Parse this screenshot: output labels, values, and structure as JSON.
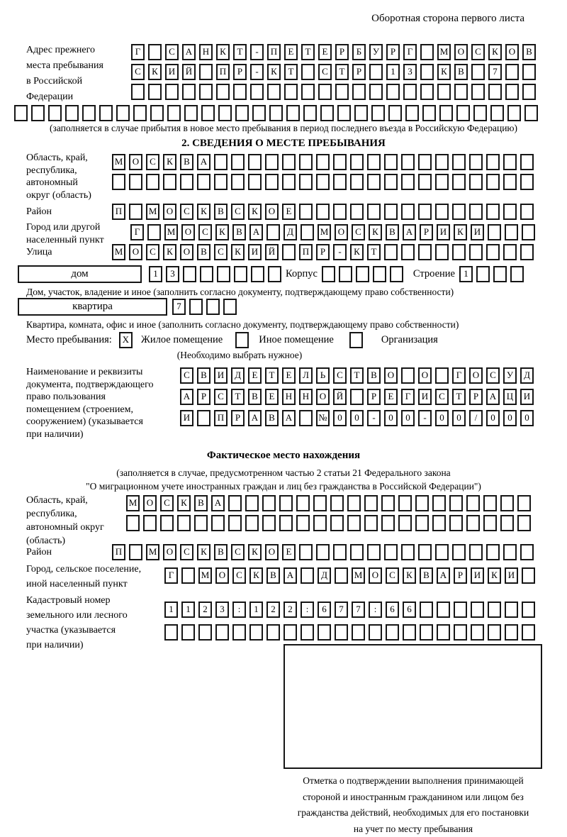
{
  "page": {
    "back_note": "Оборотная сторона первого листа"
  },
  "prev_address": {
    "label": "Адрес прежнего\nместа пребывания\nв Российской\nФедерации",
    "row1": {
      "cells": 24,
      "value": "Г САНКТ-ПЕТЕРБУРГ МОСКОВ"
    },
    "row2": {
      "cells": 24,
      "value": "СКИЙ ПР-КТ СТР 13 КВ 7"
    },
    "row3": {
      "cells": 24,
      "value": ""
    },
    "row4": {
      "cells": 31,
      "value": ""
    },
    "note": "(заполняется в случае прибытия в новое место пребывания в период последнего въезда в Российскую Федерацию)"
  },
  "section2": {
    "title": "2. СВЕДЕНИЯ О МЕСТЕ ПРЕБЫВАНИЯ",
    "oblast": {
      "label": "Область, край,\nреспублика,\nавтономный\nокруг (область)",
      "row1": {
        "cells": 25,
        "value": "МОСКВА"
      },
      "row2": {
        "cells": 25,
        "value": ""
      }
    },
    "raion": {
      "label": "Район",
      "row": {
        "cells": 25,
        "value": "П МОСКВСКОЕ"
      }
    },
    "gorod": {
      "label": "Город или другой\nнаселенный пункт",
      "row": {
        "cells": 24,
        "value": "Г МОСКВА Д МОСКВАРИКИ"
      }
    },
    "ulitsa": {
      "label": "Улица",
      "row": {
        "cells": 25,
        "value": "МОСКОВСКИЙ ПР-КТ"
      }
    },
    "dom": {
      "field_label": "дом",
      "row": {
        "cells": 8,
        "value": "13"
      },
      "korpus_label": "Корпус",
      "korpus_row": {
        "cells": 5,
        "value": ""
      },
      "stroenie_label": "Строение",
      "stroenie_row": {
        "cells": 4,
        "value": "1"
      },
      "note": "Дом, участок, владение и иное (заполнить согласно документу, подтверждающему право собственности)"
    },
    "kvartira": {
      "field_label": "квартира",
      "row": {
        "cells": 4,
        "value": "7"
      },
      "note": "Квартира, комната, офис и иное (заполнить согласно документу, подтверждающему право собственности)"
    },
    "mesto": {
      "label": "Место пребывания:",
      "options": [
        {
          "label": "Жилое помещение",
          "mark": "X"
        },
        {
          "label": "Иное помещение",
          "mark": ""
        },
        {
          "label": "Организация",
          "mark": ""
        }
      ],
      "note": "(Необходимо выбрать нужное)"
    },
    "doc": {
      "label": "Наименование и реквизиты\nдокумента, подтверждающего\nправо пользования\nпомещением (строением,\nсооружением) (указывается\nпри наличии)",
      "row1": {
        "cells": 21,
        "value": "СВИДЕТЕЛЬСТВО О ГОСУД"
      },
      "row2": {
        "cells": 21,
        "value": "АРСТВЕННОЙ РЕГИСТРАЦИ"
      },
      "row3": {
        "cells": 21,
        "value": "И ПРАВА №00-00-00/000"
      }
    }
  },
  "fact": {
    "title": "Фактическое место нахождения",
    "subtitle1": "(заполняется в случае, предусмотренном частью 2 статьи 21 Федерального закона",
    "subtitle2": "\"О миграционном учете иностранных граждан и лиц без гражданства в Российской Федерации\")",
    "oblast": {
      "label": "Область, край,\nреспублика,\nавтономный округ\n(область)",
      "row1": {
        "cells": 24,
        "value": "МОСКВА"
      },
      "row2": {
        "cells": 24,
        "value": ""
      }
    },
    "raion": {
      "label": "Район",
      "row": {
        "cells": 25,
        "value": "П МОСКВСКОЕ"
      }
    },
    "gorod": {
      "label": "Город, сельское поселение,\nиной населенный пункт",
      "row": {
        "cells": 22,
        "value": "Г МОСКВА Д МОСКВАРИКИ"
      }
    },
    "cadastre": {
      "label": "Кадастровый номер\nземельного или лесного\nучастка (указывается\nпри наличии)",
      "row1": {
        "cells": 22,
        "value": "1123:122:677:66"
      },
      "row2": {
        "cells": 22,
        "value": ""
      }
    },
    "stamp_note": "Отметка о подтверждении выполнения принимающей\nстороной и иностранным гражданином или лицом без\nгражданства действий, необходимых для его постановки\nна учет по месту пребывания"
  }
}
